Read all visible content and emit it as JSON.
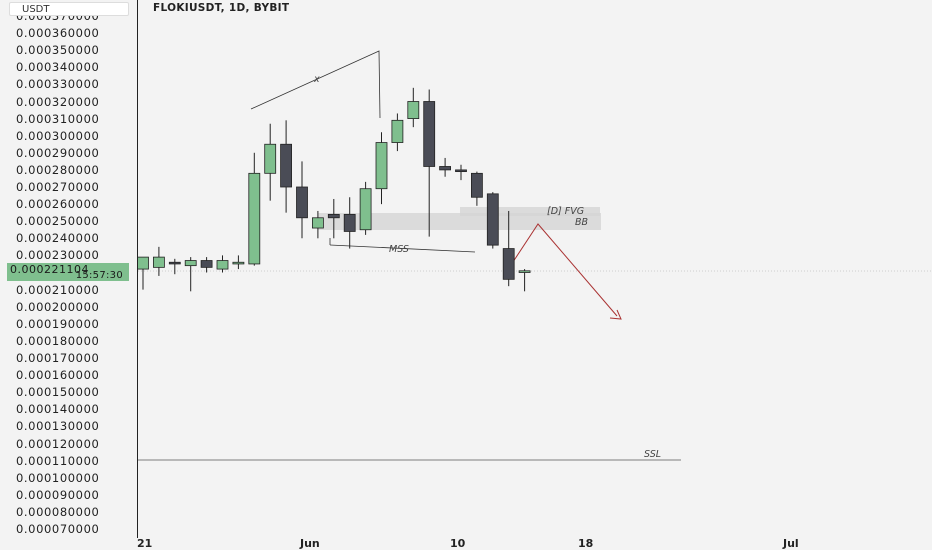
{
  "header": {
    "unit": "USDT",
    "symbol": "FLOKIUSDT, 1D, BYBIT"
  },
  "price_axis": {
    "ticks": [
      "0.000370000",
      "0.000360000",
      "0.000350000",
      "0.000340000",
      "0.000330000",
      "0.000320000",
      "0.000310000",
      "0.000300000",
      "0.000290000",
      "0.000280000",
      "0.000270000",
      "0.000260000",
      "0.000250000",
      "0.000240000",
      "0.000230000",
      "0.000210000",
      "0.000200000",
      "0.000190000",
      "0.000180000",
      "0.000170000",
      "0.000160000",
      "0.000150000",
      "0.000140000",
      "0.000130000",
      "0.000120000",
      "0.000110000",
      "0.000100000",
      "0.000090000",
      "0.000080000",
      "0.000070000"
    ],
    "current_price": "0.000221104",
    "countdown": "15:57:30"
  },
  "time_axis": {
    "labels": [
      "21",
      "Jun",
      "10",
      "18",
      "Jul"
    ]
  },
  "annotations": {
    "fvg_label": "[D] FVG",
    "bb_label": "BB",
    "mss_label": "MSS",
    "ssl_label": "SSL",
    "x_label": "x"
  },
  "chart_data": {
    "type": "candlestick",
    "symbol": "FLOKIUSDT",
    "timeframe": "1D",
    "exchange": "BYBIT",
    "y_axis_range": [
      7e-05,
      0.00037
    ],
    "candles": [
      {
        "o": 0.000222,
        "h": 0.000227,
        "l": 0.00021,
        "c": 0.000229
      },
      {
        "o": 0.000223,
        "h": 0.000235,
        "l": 0.000218,
        "c": 0.000229
      },
      {
        "o": 0.000226,
        "h": 0.000228,
        "l": 0.000219,
        "c": 0.000225
      },
      {
        "o": 0.000224,
        "h": 0.000229,
        "l": 0.000209,
        "c": 0.000227
      },
      {
        "o": 0.000227,
        "h": 0.000229,
        "l": 0.00022,
        "c": 0.000223
      },
      {
        "o": 0.000222,
        "h": 0.00023,
        "l": 0.00022,
        "c": 0.000227
      },
      {
        "o": 0.000225,
        "h": 0.00023,
        "l": 0.000222,
        "c": 0.000226
      },
      {
        "o": 0.000225,
        "h": 0.00029,
        "l": 0.000224,
        "c": 0.000278
      },
      {
        "o": 0.000278,
        "h": 0.000307,
        "l": 0.000262,
        "c": 0.000295
      },
      {
        "o": 0.000295,
        "h": 0.000309,
        "l": 0.000255,
        "c": 0.00027
      },
      {
        "o": 0.00027,
        "h": 0.000285,
        "l": 0.00024,
        "c": 0.000252
      },
      {
        "o": 0.000246,
        "h": 0.000256,
        "l": 0.00024,
        "c": 0.000252
      },
      {
        "o": 0.000254,
        "h": 0.000263,
        "l": 0.00024,
        "c": 0.000252
      },
      {
        "o": 0.000254,
        "h": 0.000264,
        "l": 0.000234,
        "c": 0.000244
      },
      {
        "o": 0.000245,
        "h": 0.000273,
        "l": 0.000242,
        "c": 0.000269
      },
      {
        "o": 0.000269,
        "h": 0.000302,
        "l": 0.00026,
        "c": 0.000296
      },
      {
        "o": 0.000296,
        "h": 0.000313,
        "l": 0.000291,
        "c": 0.000309
      },
      {
        "o": 0.00031,
        "h": 0.000328,
        "l": 0.000305,
        "c": 0.00032
      },
      {
        "o": 0.00032,
        "h": 0.000327,
        "l": 0.000241,
        "c": 0.000282
      },
      {
        "o": 0.000282,
        "h": 0.000287,
        "l": 0.000276,
        "c": 0.00028
      },
      {
        "o": 0.00028,
        "h": 0.000283,
        "l": 0.000274,
        "c": 0.000279
      },
      {
        "o": 0.000278,
        "h": 0.000279,
        "l": 0.000259,
        "c": 0.000264
      },
      {
        "o": 0.000266,
        "h": 0.000267,
        "l": 0.000234,
        "c": 0.000236
      },
      {
        "o": 0.000234,
        "h": 0.000256,
        "l": 0.000212,
        "c": 0.000216
      },
      {
        "o": 0.00022,
        "h": 0.000222,
        "l": 0.000209,
        "c": 0.000221
      }
    ]
  }
}
